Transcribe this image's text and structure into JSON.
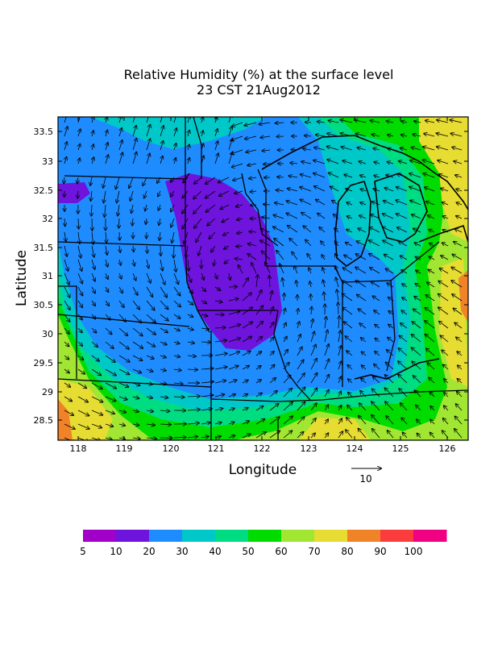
{
  "title": {
    "line1": "Relative Humidity (%) at the surface level",
    "line2": "23 CST 21Aug2012"
  },
  "axes": {
    "xlabel": "Longitude",
    "ylabel": "Latitude",
    "xticks": [
      "118",
      "119",
      "120",
      "121",
      "122",
      "123",
      "124",
      "125",
      "126"
    ],
    "yticks": [
      "33.5",
      "33",
      "32.5",
      "32",
      "31.5",
      "31",
      "30.5",
      "30",
      "29.5",
      "29",
      "28.5"
    ]
  },
  "vector_key": {
    "label": "10"
  },
  "colorbar": {
    "levels": [
      "5",
      "10",
      "20",
      "30",
      "40",
      "50",
      "60",
      "70",
      "80",
      "90",
      "100"
    ],
    "colors": [
      "#a000c8",
      "#6e14dc",
      "#1e8cff",
      "#00c8c8",
      "#00dc82",
      "#00dc00",
      "#a0e632",
      "#e6dc32",
      "#f08228",
      "#fa3c3c",
      "#f00082"
    ]
  },
  "regions": [
    {
      "name": "purple-core",
      "color": "#6e14dc"
    },
    {
      "name": "blue-band",
      "color": "#1e8cff"
    },
    {
      "name": "cyan-band",
      "color": "#00c8c8"
    },
    {
      "name": "green-band",
      "color": "#00dc00"
    },
    {
      "name": "lightgreen-band",
      "color": "#a0e632"
    },
    {
      "name": "yellow-band",
      "color": "#e6dc32"
    },
    {
      "name": "orange-band",
      "color": "#f08228"
    }
  ]
}
